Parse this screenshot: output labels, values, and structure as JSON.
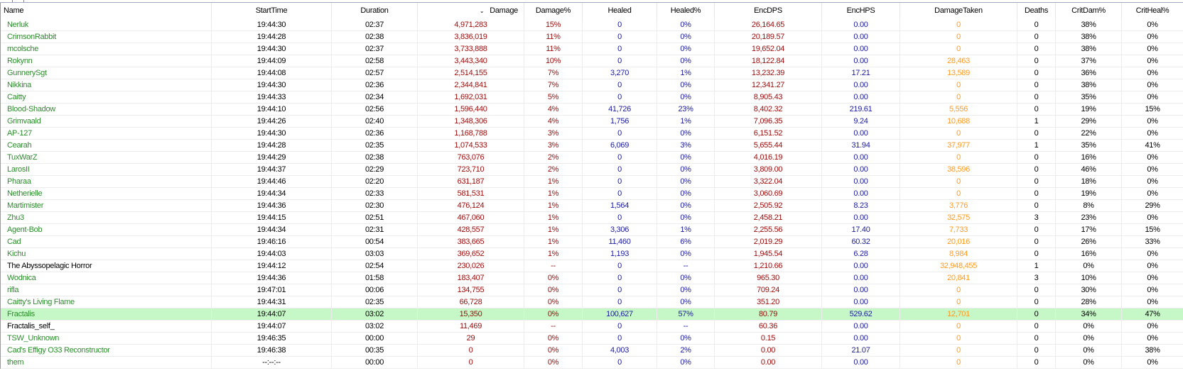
{
  "columns": [
    "Name",
    "StartTime",
    "Duration",
    "Damage",
    "Damage%",
    "Healed",
    "Healed%",
    "EncDPS",
    "EncHPS",
    "DamageTaken",
    "Deaths",
    "CritDam%",
    "CritHeal%"
  ],
  "sort_column": "Damage",
  "sort_indicator": "⌄",
  "colors": {
    "ally_name": "#2c8c2c",
    "other_name": "#000000",
    "damage": "#9b0a0a",
    "healing": "#1a1aa0",
    "damage_taken": "#ff9a22",
    "selected_row": "#c6f7c6"
  },
  "selected_row": "Fractalis",
  "rows": [
    [
      "Nerluk",
      "19:44:30",
      "02:37",
      "4,971,283",
      "15%",
      "0",
      "0%",
      "26,164.65",
      "0.00",
      "0",
      "0",
      "38%",
      "0%"
    ],
    [
      "CrimsonRabbit",
      "19:44:28",
      "02:38",
      "3,836,019",
      "11%",
      "0",
      "0%",
      "20,189.57",
      "0.00",
      "0",
      "0",
      "38%",
      "0%"
    ],
    [
      "mcolsche",
      "19:44:30",
      "02:37",
      "3,733,888",
      "11%",
      "0",
      "0%",
      "19,652.04",
      "0.00",
      "0",
      "0",
      "38%",
      "0%"
    ],
    [
      "Rokynn",
      "19:44:09",
      "02:58",
      "3,443,340",
      "10%",
      "0",
      "0%",
      "18,122.84",
      "0.00",
      "28,463",
      "0",
      "37%",
      "0%"
    ],
    [
      "GunnerySgt",
      "19:44:08",
      "02:57",
      "2,514,155",
      "7%",
      "3,270",
      "1%",
      "13,232.39",
      "17.21",
      "13,589",
      "0",
      "36%",
      "0%"
    ],
    [
      "Nikkina",
      "19:44:30",
      "02:36",
      "2,344,841",
      "7%",
      "0",
      "0%",
      "12,341.27",
      "0.00",
      "0",
      "0",
      "38%",
      "0%"
    ],
    [
      "Caitty",
      "19:44:33",
      "02:34",
      "1,692,031",
      "5%",
      "0",
      "0%",
      "8,905.43",
      "0.00",
      "0",
      "0",
      "35%",
      "0%"
    ],
    [
      "Blood-Shadow",
      "19:44:10",
      "02:56",
      "1,596,440",
      "4%",
      "41,726",
      "23%",
      "8,402.32",
      "219.61",
      "5,556",
      "0",
      "19%",
      "15%"
    ],
    [
      "Grimvaald",
      "19:44:26",
      "02:40",
      "1,348,306",
      "4%",
      "1,756",
      "1%",
      "7,096.35",
      "9.24",
      "10,688",
      "1",
      "29%",
      "0%"
    ],
    [
      "AP-127",
      "19:44:30",
      "02:36",
      "1,168,788",
      "3%",
      "0",
      "0%",
      "6,151.52",
      "0.00",
      "0",
      "0",
      "22%",
      "0%"
    ],
    [
      "Cearah",
      "19:44:28",
      "02:35",
      "1,074,533",
      "3%",
      "6,069",
      "3%",
      "5,655.44",
      "31.94",
      "37,977",
      "1",
      "35%",
      "41%"
    ],
    [
      "TuxWarZ",
      "19:44:29",
      "02:38",
      "763,076",
      "2%",
      "0",
      "0%",
      "4,016.19",
      "0.00",
      "0",
      "0",
      "16%",
      "0%"
    ],
    [
      "LarosII",
      "19:44:37",
      "02:29",
      "723,710",
      "2%",
      "0",
      "0%",
      "3,809.00",
      "0.00",
      "38,596",
      "0",
      "46%",
      "0%"
    ],
    [
      "Pharaa",
      "19:44:46",
      "02:20",
      "631,187",
      "1%",
      "0",
      "0%",
      "3,322.04",
      "0.00",
      "0",
      "0",
      "18%",
      "0%"
    ],
    [
      "Netherielle",
      "19:44:34",
      "02:33",
      "581,531",
      "1%",
      "0",
      "0%",
      "3,060.69",
      "0.00",
      "0",
      "0",
      "19%",
      "0%"
    ],
    [
      "Martimister",
      "19:44:36",
      "02:30",
      "476,124",
      "1%",
      "1,564",
      "0%",
      "2,505.92",
      "8.23",
      "3,776",
      "0",
      "8%",
      "29%"
    ],
    [
      "Zhu3",
      "19:44:15",
      "02:51",
      "467,060",
      "1%",
      "0",
      "0%",
      "2,458.21",
      "0.00",
      "32,575",
      "3",
      "23%",
      "0%"
    ],
    [
      "Agent-Bob",
      "19:44:34",
      "02:31",
      "428,557",
      "1%",
      "3,306",
      "1%",
      "2,255.56",
      "17.40",
      "7,733",
      "0",
      "17%",
      "15%"
    ],
    [
      "Cad",
      "19:46:16",
      "00:54",
      "383,665",
      "1%",
      "11,460",
      "6%",
      "2,019.29",
      "60.32",
      "20,016",
      "0",
      "26%",
      "33%"
    ],
    [
      "Kichu",
      "19:44:03",
      "03:03",
      "369,652",
      "1%",
      "1,193",
      "0%",
      "1,945.54",
      "6.28",
      "8,984",
      "0",
      "16%",
      "0%"
    ],
    [
      "The Abyssopelagic Horror",
      "19:44:12",
      "02:54",
      "230,026",
      "--",
      "0",
      "--",
      "1,210.66",
      "0.00",
      "32,948,455",
      "1",
      "0%",
      "0%"
    ],
    [
      "Wodnica",
      "19:44:36",
      "01:58",
      "183,407",
      "0%",
      "0",
      "0%",
      "965.30",
      "0.00",
      "20,841",
      "3",
      "10%",
      "0%"
    ],
    [
      "rifla",
      "19:47:01",
      "00:06",
      "134,755",
      "0%",
      "0",
      "0%",
      "709.24",
      "0.00",
      "0",
      "0",
      "30%",
      "0%"
    ],
    [
      "Caitty's Living Flame",
      "19:44:31",
      "02:35",
      "66,728",
      "0%",
      "0",
      "0%",
      "351.20",
      "0.00",
      "0",
      "0",
      "28%",
      "0%"
    ],
    [
      "Fractalis",
      "19:44:07",
      "03:02",
      "15,350",
      "0%",
      "100,627",
      "57%",
      "80.79",
      "529.62",
      "12,701",
      "0",
      "34%",
      "47%"
    ],
    [
      "Fractalis_self_",
      "19:44:07",
      "03:02",
      "11,469",
      "--",
      "0",
      "--",
      "60.36",
      "0.00",
      "0",
      "0",
      "0%",
      "0%"
    ],
    [
      "TSW_Unknown",
      "19:46:35",
      "00:00",
      "29",
      "0%",
      "0",
      "0%",
      "0.15",
      "0.00",
      "0",
      "0",
      "0%",
      "0%"
    ],
    [
      "Cad's Effigy O33 Reconstructor",
      "19:46:38",
      "00:35",
      "0",
      "0%",
      "4,003",
      "2%",
      "0.00",
      "21.07",
      "0",
      "0",
      "0%",
      "38%"
    ],
    [
      "them",
      "--:--:--",
      "00:00",
      "0",
      "0%",
      "0",
      "0%",
      "0.00",
      "0.00",
      "0",
      "0",
      "0%",
      "0%"
    ]
  ]
}
